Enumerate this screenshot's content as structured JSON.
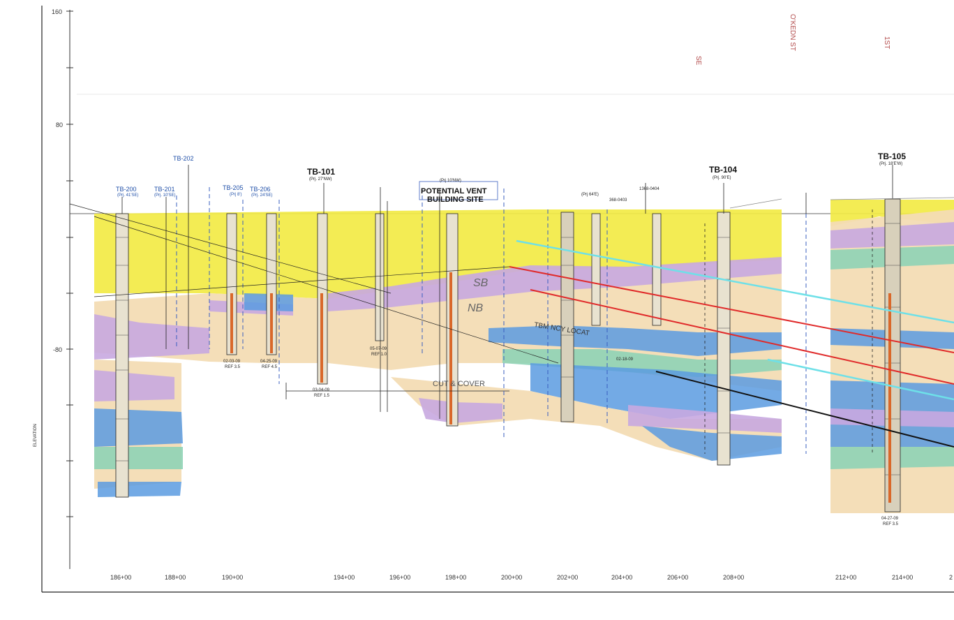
{
  "y_axis": {
    "label": "ELEVATION",
    "ticks": [
      "160",
      "80",
      "-80"
    ]
  },
  "stations": [
    "186+00",
    "188+00",
    "190+00",
    "194+00",
    "196+00",
    "198+00",
    "200+00",
    "202+00",
    "204+00",
    "206+00",
    "208+00",
    "212+00",
    "214+00",
    "2"
  ],
  "boring_labels": [
    {
      "name": "TB-200",
      "sub": "(Prj. 41'SE)",
      "color": "blue"
    },
    {
      "name": "TB-201",
      "sub": "(Prj. 10'SE)",
      "color": "blue"
    },
    {
      "name": "TB-202",
      "sub": "",
      "color": "blue"
    },
    {
      "name": "TB-205",
      "sub": "(Prj 8')",
      "color": "blue"
    },
    {
      "name": "TB-206",
      "sub": "(Prj. 24'SE)",
      "color": "blue"
    },
    {
      "name": "TB-101",
      "sub": "(Prj. 27'NW)",
      "color": "black"
    },
    {
      "name": "TB-104",
      "sub": "(Prj. 90'E)",
      "color": "black"
    },
    {
      "name": "TB-105",
      "sub": "(Prj. 18'E'W)",
      "color": "black"
    }
  ],
  "other_labels": {
    "proj_vent": "(Prj 10'NW)",
    "small_1": "368-0403",
    "small_2": "1368-0404",
    "small_3": "(Prj 64'E)"
  },
  "annotations": {
    "potential_vent": "POTENTIAL VENT",
    "building_site": "BUILDING SITE",
    "sb": "SB",
    "nb": "NB",
    "tbm_text": "TBM        NCY  LOCAT",
    "cut_cover": "CUT & COVER"
  },
  "street_labels": [
    "SE",
    "O'KEDN ST",
    "1ST"
  ],
  "boring_dates": [
    {
      "date": "02-03-09",
      "ref": "REF 3.5"
    },
    {
      "date": "04-25-09",
      "ref": "REF 4.5"
    },
    {
      "date": "03-04-09",
      "ref": "REF 1.5"
    },
    {
      "date": "05-07-09",
      "ref": "REF 1.0"
    },
    {
      "date": "02-18-09",
      "ref": ""
    },
    {
      "date": "04-27-09",
      "ref": "REF 3.5"
    }
  ],
  "colors": {
    "fill": "#f2ea45",
    "sand": "#f3dcb4",
    "clay": "#c8a8e0",
    "glacial": "#5b9be0",
    "till": "#8fd3b6",
    "red_line": "#e02a2a",
    "cyan_line": "#6ee0e8"
  }
}
